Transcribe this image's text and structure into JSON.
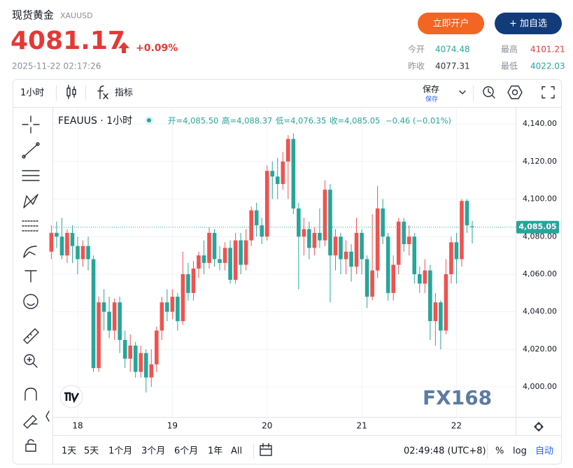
{
  "header": {
    "name": "现货黄金",
    "symbol": "XAUUSD",
    "price": "4081.17",
    "change": "+0.09%",
    "timestamp": "2025-11-22 02:17:26",
    "buttons": [
      "立即开户",
      "+ 加自选"
    ],
    "stats": [
      {
        "label": "今开",
        "value": "4074.48"
      },
      {
        "label": "最高",
        "value": "4101.21"
      },
      {
        "label": "昨收",
        "value": "4077.31"
      },
      {
        "label": "最低",
        "value": "4022.03"
      }
    ]
  },
  "toolbar": {
    "interval": "1小时",
    "indicators": "指标",
    "save": "保存",
    "save_sub": "保存"
  },
  "footer": {
    "ranges": [
      "1天",
      "5天",
      "1个月",
      "3个月",
      "6个月",
      "1年",
      "All"
    ],
    "time": "02:49:48 (UTC+8)",
    "percent": "%",
    "log": "log",
    "auto": "自动"
  },
  "chart_data": {
    "type": "candlestick",
    "title": "FEAUUS · 1小时",
    "watermark": "FX168",
    "legend": [
      "开=4,085.50",
      "高=4,088.37",
      "低=4,076.35",
      "收=4,085.05",
      "−0.46 (−0.01%)"
    ],
    "last_price_label": "4,085.05",
    "up_color": "#ef5350",
    "down_color": "#26a69a",
    "grid": true,
    "categories": [
      null,
      null,
      null,
      null,
      null,
      "18",
      null,
      null,
      null,
      null,
      null,
      null,
      null,
      null,
      null,
      null,
      null,
      null,
      null,
      null,
      null,
      null,
      null,
      "19",
      null,
      null,
      null,
      null,
      null,
      null,
      null,
      null,
      null,
      null,
      null,
      null,
      null,
      null,
      null,
      null,
      null,
      "20",
      null,
      null,
      null,
      null,
      null,
      null,
      null,
      null,
      null,
      null,
      null,
      null,
      null,
      null,
      null,
      null,
      null,
      "21",
      null,
      null,
      null,
      null,
      null,
      null,
      null,
      null,
      null,
      null,
      null,
      null,
      null,
      null,
      null,
      null,
      null,
      "22",
      null,
      null,
      null
    ],
    "open": [
      4072,
      4082,
      4080,
      4070,
      4082,
      4075,
      4068,
      4075,
      4068,
      4010,
      4045,
      4040,
      4030,
      4045,
      4025,
      4015,
      4022,
      4008,
      4018,
      4005,
      4012,
      4030,
      4045,
      4040,
      4048,
      4035,
      4060,
      4050,
      4063,
      4070,
      4066,
      4082,
      4068,
      4066,
      4074,
      4057,
      4078,
      4065,
      4078,
      4094,
      4086,
      4080,
      4115,
      4112,
      4108,
      4120,
      4132,
      4095,
      4080,
      4084,
      4074,
      4082,
      4078,
      4105,
      4070,
      4080,
      4068,
      4072,
      4064,
      4082,
      4068,
      4048,
      4062,
      4095,
      4080,
      4050,
      4065,
      4088,
      4076,
      4080,
      4060,
      4055,
      4062,
      4035,
      4045,
      4030,
      4060,
      4077,
      4068,
      4099,
      4085.5
    ],
    "high": [
      4086,
      4088,
      4090,
      4084,
      4086,
      4080,
      4078,
      4080,
      4070,
      4048,
      4052,
      4048,
      4047,
      4048,
      4030,
      4028,
      4024,
      4022,
      4020,
      4020,
      4032,
      4048,
      4052,
      4052,
      4050,
      4072,
      4066,
      4067,
      4072,
      4078,
      4085,
      4084,
      4075,
      4077,
      4078,
      4082,
      4082,
      4084,
      4096,
      4098,
      4090,
      4118,
      4120,
      4122,
      4125,
      4134,
      4135,
      4098,
      4090,
      4088,
      4085,
      4095,
      4110,
      4108,
      4084,
      4082,
      4078,
      4076,
      4090,
      4084,
      4070,
      4092,
      4107,
      4100,
      4082,
      4070,
      4090,
      4090,
      4086,
      4082,
      4064,
      4068,
      4065,
      4050,
      4046,
      4068,
      4080,
      4082,
      4100,
      4100,
      4088.37
    ],
    "low": [
      4068,
      4074,
      4068,
      4066,
      4066,
      4060,
      4064,
      4062,
      4008,
      4008,
      4030,
      4026,
      4025,
      4018,
      4010,
      4008,
      4005,
      4005,
      3997,
      4000,
      4008,
      4025,
      4035,
      4036,
      4030,
      4033,
      4046,
      4046,
      4058,
      4060,
      4063,
      4064,
      4062,
      4062,
      4055,
      4055,
      4060,
      4062,
      4075,
      4080,
      4076,
      4078,
      4100,
      4100,
      4105,
      4100,
      4092,
      4052,
      4070,
      4068,
      4070,
      4074,
      4075,
      4045,
      4062,
      4060,
      4060,
      4056,
      4060,
      4060,
      4042,
      4046,
      4058,
      4076,
      4046,
      4046,
      4060,
      4072,
      4070,
      4055,
      4050,
      4050,
      4025,
      4022,
      4020,
      4028,
      4055,
      4055,
      4064,
      4082,
      4076.35
    ],
    "close": [
      4082,
      4080,
      4070,
      4082,
      4075,
      4068,
      4075,
      4068,
      4010,
      4045,
      4040,
      4030,
      4045,
      4025,
      4015,
      4022,
      4008,
      4018,
      4005,
      4012,
      4030,
      4045,
      4040,
      4048,
      4035,
      4060,
      4050,
      4063,
      4070,
      4066,
      4082,
      4068,
      4066,
      4074,
      4057,
      4078,
      4065,
      4078,
      4094,
      4086,
      4080,
      4115,
      4112,
      4108,
      4120,
      4132,
      4095,
      4080,
      4084,
      4074,
      4082,
      4078,
      4105,
      4070,
      4080,
      4068,
      4072,
      4064,
      4082,
      4068,
      4048,
      4062,
      4095,
      4080,
      4050,
      4065,
      4088,
      4076,
      4080,
      4060,
      4055,
      4062,
      4035,
      4045,
      4030,
      4060,
      4077,
      4068,
      4099,
      4086,
      4085.05
    ],
    "ylim": [
      3984,
      4149
    ],
    "yticks": [
      {
        "value": 4000,
        "label": "4,000.00"
      },
      {
        "value": 4020,
        "label": "4,020.00"
      },
      {
        "value": 4040,
        "label": "4,040.00"
      },
      {
        "value": 4060,
        "label": "4,060.00"
      },
      {
        "value": 4080,
        "label": "4,080.00"
      },
      {
        "value": 4100,
        "label": "4,100.00"
      },
      {
        "value": 4120,
        "label": "4,120.00"
      },
      {
        "value": 4140,
        "label": "4,140.00"
      }
    ]
  }
}
